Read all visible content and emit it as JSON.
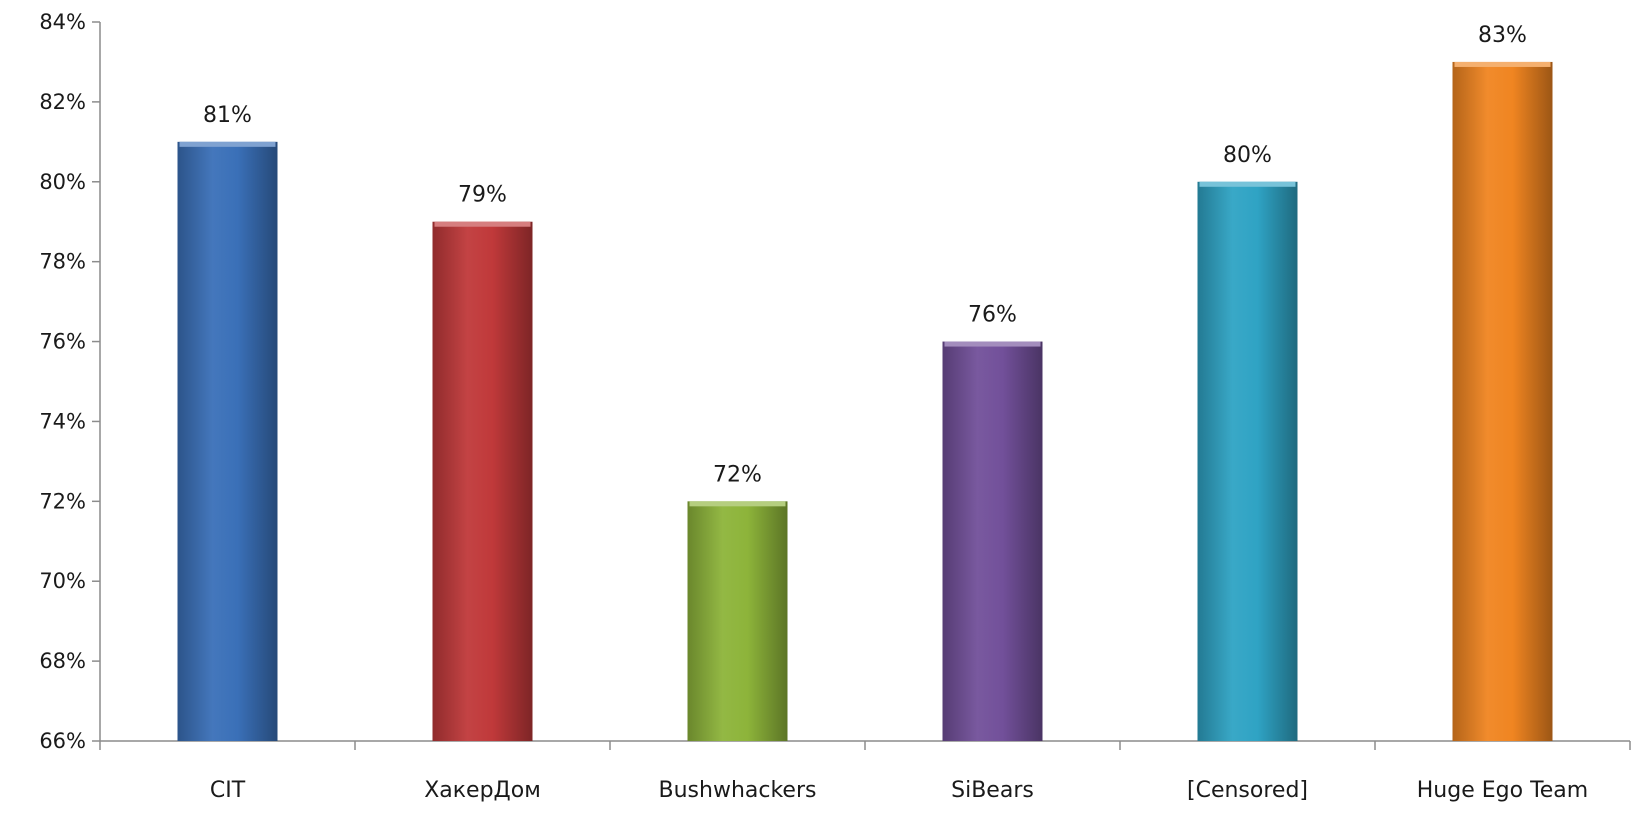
{
  "chart_data": {
    "type": "bar",
    "title": "",
    "xlabel": "",
    "ylabel": "",
    "categories": [
      "CIT",
      "ХакерДом",
      "Bushwhackers",
      "SiBears",
      "[Censored]",
      "Huge Ego Team"
    ],
    "values": [
      81,
      79,
      72,
      76,
      80,
      83
    ],
    "data_labels": [
      "81%",
      "79%",
      "72%",
      "76%",
      "80%",
      "83%"
    ],
    "ylim": [
      66,
      84
    ],
    "yticks": [
      66,
      68,
      70,
      72,
      74,
      76,
      78,
      80,
      82,
      84
    ],
    "ytick_labels": [
      "66%",
      "68%",
      "70%",
      "72%",
      "74%",
      "76%",
      "78%",
      "80%",
      "82%",
      "84%"
    ],
    "grid": false,
    "legend": "none",
    "colors": [
      "#3a70b8",
      "#c0393a",
      "#8db43a",
      "#72509a",
      "#2fa3c4",
      "#f08521"
    ]
  }
}
